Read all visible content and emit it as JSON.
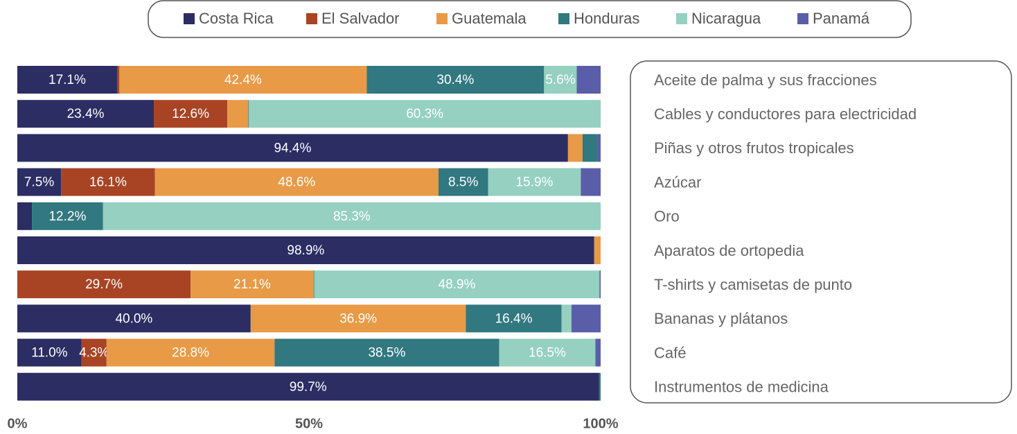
{
  "chart_data": {
    "type": "stacked-bar-horizontal",
    "categories": [
      "Aceite de palma y sus fracciones",
      "Cables y conductores para electricidad",
      "Piñas y otros frutos tropicales",
      "Azúcar",
      "Oro",
      "Aparatos de ortopedia",
      "T-shirts y camisetas de punto",
      "Bananas y plátanos",
      "Café",
      "Instrumentos de medicina"
    ],
    "series": [
      {
        "name": "Costa Rica",
        "color": "#2b2d63",
        "values": [
          17.1,
          23.4,
          94.4,
          7.5,
          2.5,
          98.9,
          0,
          40.0,
          11.0,
          99.7
        ],
        "value_labels": [
          "17.1%",
          "23.4%",
          "94.4%",
          "7.5%",
          null,
          "98.9%",
          null,
          "40.0%",
          "11.0%",
          "99.7%"
        ]
      },
      {
        "name": "El Salvador",
        "color": "#a84424",
        "values": [
          0.4,
          12.6,
          0,
          16.1,
          0,
          0,
          29.7,
          0,
          4.3,
          0
        ],
        "value_labels": [
          null,
          "12.6%",
          null,
          "16.1%",
          null,
          null,
          "29.7%",
          null,
          "4.3%",
          null
        ]
      },
      {
        "name": "Guatemala",
        "color": "#e89a46",
        "values": [
          42.4,
          3.6,
          2.5,
          48.6,
          0,
          1.1,
          21.1,
          36.9,
          28.8,
          0
        ],
        "value_labels": [
          "42.4%",
          null,
          null,
          "48.6%",
          null,
          null,
          "21.1%",
          "36.9%",
          "28.8%",
          null
        ]
      },
      {
        "name": "Honduras",
        "color": "#317880",
        "values": [
          30.4,
          0.1,
          2.5,
          8.5,
          12.2,
          0,
          0.1,
          16.4,
          38.5,
          0.3
        ],
        "value_labels": [
          "30.4%",
          null,
          null,
          "8.5%",
          "12.2%",
          null,
          null,
          "16.4%",
          "38.5%",
          null
        ]
      },
      {
        "name": "Nicaragua",
        "color": "#95d0c0",
        "values": [
          5.6,
          60.3,
          0,
          15.9,
          85.3,
          0,
          48.9,
          1.7,
          16.5,
          0
        ],
        "value_labels": [
          "5.6%",
          "60.3%",
          null,
          "15.9%",
          "85.3%",
          null,
          "48.9%",
          null,
          "16.5%",
          null
        ]
      },
      {
        "name": "Panamá",
        "color": "#5a5ea8",
        "values": [
          4.1,
          0,
          0.6,
          3.4,
          0,
          0,
          0.2,
          5.0,
          0.9,
          0
        ],
        "value_labels": [
          null,
          null,
          null,
          null,
          null,
          null,
          null,
          null,
          null,
          null
        ]
      }
    ],
    "xlim": [
      0,
      100
    ],
    "xticks": [
      {
        "value": 0,
        "label": "0%"
      },
      {
        "value": 50,
        "label": "50%"
      },
      {
        "value": 100,
        "label": "100%"
      }
    ]
  }
}
